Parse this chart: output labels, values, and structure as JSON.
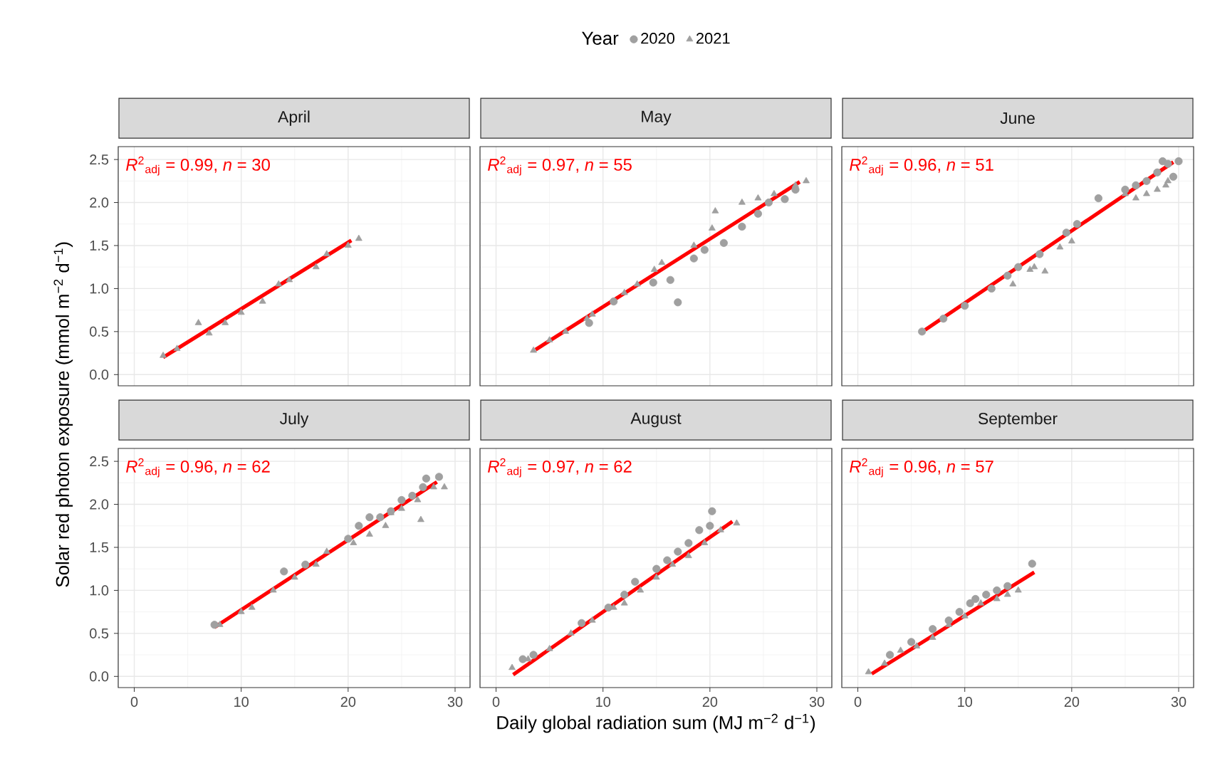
{
  "chart_data": [
    {
      "type": "scatter",
      "title": "April",
      "annotations": [
        "*R*$^{2}$$_{adj}$ = 0.99, *n* = 30"
      ],
      "ylabel": "Solar red photon exposure (mmol m$^{−2}$ d$^{−1}$)",
      "xlim": [
        -1.5,
        31.4
      ],
      "ylim": [
        -0.13,
        2.65
      ],
      "xticks": [
        0,
        10,
        20,
        30
      ],
      "yticks": [
        {
          "value": 0,
          "label": "0.0"
        },
        0.5,
        {
          "value": 1,
          "label": "1.0"
        },
        1.5,
        {
          "value": 2,
          "label": "2.0"
        },
        2.5
      ],
      "grid": true,
      "tick_labels": "y",
      "series": [
        {
          "marker": "triangle",
          "color": "#a0a0a0",
          "x": [
            2.7,
            4,
            6,
            7,
            8.5,
            10,
            12,
            13.5,
            14.5,
            17,
            18,
            20,
            21
          ],
          "values": [
            0.22,
            0.3,
            0.6,
            0.48,
            0.6,
            0.72,
            0.85,
            1.05,
            1.1,
            1.25,
            1.4,
            1.5,
            1.58
          ]
        },
        {
          "type": "line",
          "color": "#ff0000",
          "marker": "none",
          "x": [
            2.7,
            20.3
          ],
          "values": [
            0.2,
            1.56
          ]
        }
      ]
    },
    {
      "type": "scatter",
      "title": "May",
      "annotations": [
        "*R*$^{2}$$_{adj}$ = 0.97, *n* = 55"
      ],
      "legend": "top",
      "legend_title": "Year",
      "xlim": [
        -1.5,
        31.4
      ],
      "ylim": [
        -0.13,
        2.65
      ],
      "xticks": [
        0,
        10,
        20,
        30
      ],
      "yticks": [
        0,
        0.5,
        1,
        1.5,
        2,
        2.5
      ],
      "grid": true,
      "tick_labels": false,
      "series": [
        {
          "name": "2020",
          "marker": "circle",
          "color": "#a0a0a0",
          "x": [
            11,
            14.7,
            16.3,
            17,
            18.5,
            19.5,
            21.3,
            23,
            24.5,
            25.5,
            27,
            28,
            8.7
          ],
          "values": [
            0.85,
            1.07,
            1.1,
            0.84,
            1.35,
            1.45,
            1.53,
            1.72,
            1.87,
            2.0,
            2.04,
            2.15,
            0.6
          ]
        },
        {
          "name": "2021",
          "marker": "triangle",
          "color": "#a0a0a0",
          "x": [
            3.5,
            5,
            6.5,
            8.5,
            9,
            12,
            13.2,
            14.8,
            15.5,
            18.5,
            20.2,
            20.5,
            23,
            24.5,
            26,
            28,
            29
          ],
          "values": [
            0.28,
            0.4,
            0.5,
            0.65,
            0.7,
            0.95,
            1.05,
            1.22,
            1.3,
            1.5,
            1.7,
            1.9,
            2.0,
            2.05,
            2.1,
            2.2,
            2.25
          ]
        },
        {
          "type": "line",
          "color": "#ff0000",
          "marker": "none",
          "x": [
            3.7,
            28.4
          ],
          "values": [
            0.29,
            2.24
          ]
        }
      ]
    },
    {
      "type": "scatter",
      "title": "June",
      "annotations": [
        "*R*$^{2}$$_{adj}$ = 0.96, *n* = 51"
      ],
      "xlim": [
        -1.5,
        31.4
      ],
      "ylim": [
        -0.13,
        2.65
      ],
      "xticks": [
        0,
        10,
        20,
        30
      ],
      "yticks": [
        0,
        0.5,
        1,
        1.5,
        2,
        2.5
      ],
      "grid": true,
      "tick_labels": false,
      "series": [
        {
          "marker": "circle",
          "color": "#a0a0a0",
          "x": [
            6,
            8,
            10,
            12.5,
            14,
            15,
            17,
            19.5,
            20.5,
            22.5,
            25,
            26,
            27,
            28,
            28.5,
            29,
            29.5,
            30
          ],
          "values": [
            0.5,
            0.65,
            0.8,
            1.0,
            1.15,
            1.25,
            1.4,
            1.65,
            1.75,
            2.05,
            2.15,
            2.2,
            2.25,
            2.35,
            2.48,
            2.45,
            2.3,
            2.48
          ]
        },
        {
          "marker": "triangle",
          "color": "#a0a0a0",
          "x": [
            14.5,
            16.1,
            16.5,
            17.5,
            18.9,
            20,
            25,
            26,
            27,
            28,
            28.8,
            29
          ],
          "values": [
            1.05,
            1.22,
            1.25,
            1.2,
            1.48,
            1.55,
            2.1,
            2.05,
            2.1,
            2.15,
            2.2,
            2.25
          ]
        },
        {
          "type": "line",
          "color": "#ff0000",
          "marker": "none",
          "x": [
            6.3,
            29.5
          ],
          "values": [
            0.52,
            2.47
          ]
        }
      ]
    },
    {
      "type": "scatter",
      "title": "July",
      "annotations": [
        "*R*$^{2}$$_{adj}$ = 0.96, *n* = 62"
      ],
      "xlim": [
        -1.5,
        31.4
      ],
      "ylim": [
        -0.13,
        2.65
      ],
      "xticks": [
        0,
        10,
        20,
        30
      ],
      "yticks": [
        {
          "value": 0,
          "label": "0.0"
        },
        0.5,
        {
          "value": 1,
          "label": "1.0"
        },
        1.5,
        {
          "value": 2,
          "label": "2.0"
        },
        2.5
      ],
      "grid": true,
      "series": [
        {
          "marker": "circle",
          "color": "#a0a0a0",
          "x": [
            7.5,
            14,
            16,
            20,
            21,
            22,
            23,
            24,
            25,
            26,
            27,
            27.3,
            28.5
          ],
          "values": [
            0.6,
            1.22,
            1.3,
            1.6,
            1.75,
            1.85,
            1.85,
            1.92,
            2.05,
            2.1,
            2.2,
            2.3,
            2.32
          ]
        },
        {
          "marker": "triangle",
          "color": "#a0a0a0",
          "x": [
            8,
            10,
            11,
            13,
            15,
            17,
            18,
            20.5,
            22,
            23.5,
            24,
            25,
            26.5,
            26.8,
            28,
            29
          ],
          "values": [
            0.6,
            0.75,
            0.8,
            1.0,
            1.15,
            1.3,
            1.45,
            1.55,
            1.65,
            1.75,
            1.9,
            1.95,
            2.05,
            1.82,
            2.2,
            2.2
          ]
        },
        {
          "type": "line",
          "color": "#ff0000",
          "marker": "none",
          "x": [
            7.5,
            28.3
          ],
          "values": [
            0.57,
            2.26
          ]
        }
      ]
    },
    {
      "type": "scatter",
      "title": "August",
      "annotations": [
        "*R*$^{2}$$_{adj}$ = 0.97, *n* = 62"
      ],
      "xlabel": "Daily global radiation sum (MJ m$^{−2}$ d$^{−1}$)",
      "xlim": [
        -1.5,
        31.4
      ],
      "ylim": [
        -0.13,
        2.65
      ],
      "xticks": [
        0,
        10,
        20,
        30
      ],
      "yticks": [
        0,
        0.5,
        1,
        1.5,
        2,
        2.5
      ],
      "grid": true,
      "tick_labels": "x",
      "series": [
        {
          "marker": "circle",
          "color": "#a0a0a0",
          "x": [
            2.5,
            3.5,
            8,
            10.5,
            12,
            13,
            15,
            16,
            17,
            18,
            19,
            20,
            20.2
          ],
          "values": [
            0.2,
            0.25,
            0.62,
            0.8,
            0.95,
            1.1,
            1.25,
            1.35,
            1.45,
            1.55,
            1.7,
            1.75,
            1.92
          ]
        },
        {
          "marker": "triangle",
          "color": "#a0a0a0",
          "x": [
            1.5,
            3,
            5,
            7,
            9,
            11,
            12,
            13.5,
            15,
            16.5,
            18,
            19.5,
            21,
            22.5
          ],
          "values": [
            0.1,
            0.2,
            0.32,
            0.5,
            0.65,
            0.8,
            0.85,
            1.0,
            1.15,
            1.3,
            1.4,
            1.55,
            1.7,
            1.78
          ]
        },
        {
          "type": "line",
          "color": "#ff0000",
          "marker": "none",
          "x": [
            1.6,
            22.1
          ],
          "values": [
            0.02,
            1.8
          ]
        }
      ]
    },
    {
      "type": "scatter",
      "title": "September",
      "annotations": [
        "*R*$^{2}$$_{adj}$ = 0.96, *n* = 57"
      ],
      "xlim": [
        -1.5,
        31.4
      ],
      "ylim": [
        -0.13,
        2.65
      ],
      "xticks": [
        0,
        10,
        20,
        30
      ],
      "yticks": [
        0,
        0.5,
        1,
        1.5,
        2,
        2.5
      ],
      "grid": true,
      "tick_labels": "x",
      "series": [
        {
          "marker": "circle",
          "color": "#a0a0a0",
          "x": [
            3,
            5,
            7,
            8.5,
            9.5,
            10.5,
            11,
            12,
            13,
            14,
            16.3
          ],
          "values": [
            0.25,
            0.4,
            0.55,
            0.65,
            0.75,
            0.85,
            0.9,
            0.95,
            1.0,
            1.05,
            1.31
          ]
        },
        {
          "marker": "triangle",
          "color": "#a0a0a0",
          "x": [
            1,
            2.5,
            4,
            5.5,
            7,
            8.5,
            10,
            11.5,
            13,
            14,
            15
          ],
          "values": [
            0.05,
            0.15,
            0.3,
            0.35,
            0.45,
            0.6,
            0.7,
            0.85,
            0.9,
            0.95,
            1.0
          ]
        },
        {
          "type": "line",
          "color": "#ff0000",
          "marker": "none",
          "x": [
            1.3,
            16.5
          ],
          "values": [
            0.03,
            1.21
          ]
        }
      ]
    }
  ]
}
